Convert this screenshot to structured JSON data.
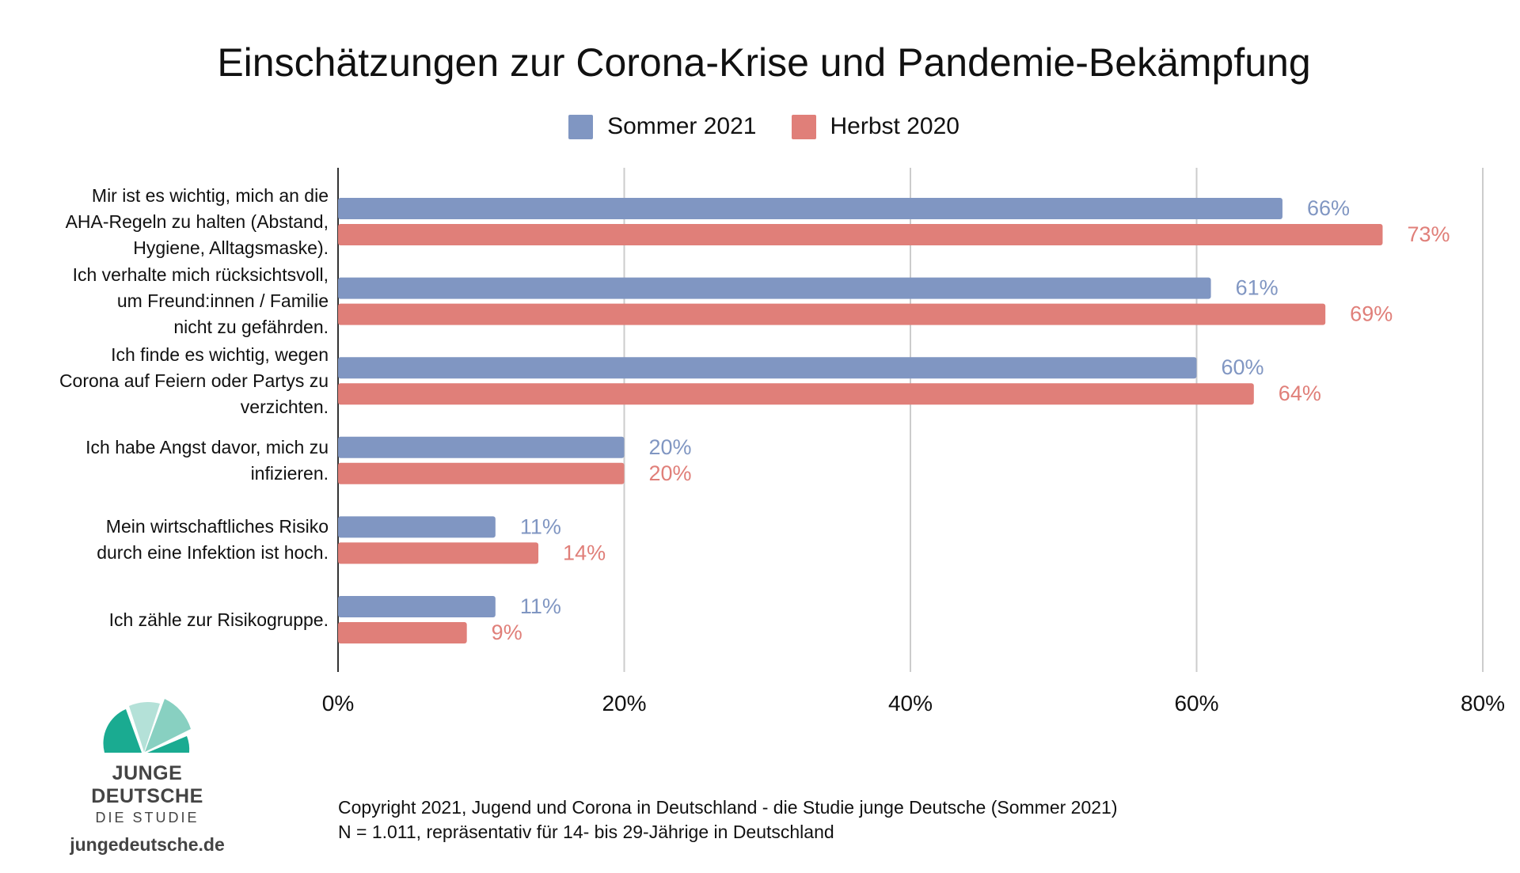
{
  "chart_data": {
    "type": "bar",
    "orientation": "horizontal",
    "title": "Einschätzungen zur Corona-Krise und Pandemie-Bekämpfung",
    "categories": [
      "Mir ist es wichtig, mich an die AHA-Regeln zu halten (Abstand, Hygiene, Alltagsmaske).",
      "Ich verhalte mich rücksichtsvoll, um Freund:innen / Familie nicht zu gefährden.",
      "Ich finde es wichtig, wegen Corona auf Feiern oder Partys zu verzichten.",
      "Ich habe Angst davor, mich zu infizieren.",
      "Mein wirtschaftliches Risiko durch eine Infektion ist hoch.",
      "Ich zähle zur Risikogruppe."
    ],
    "category_lines": [
      [
        "Mir ist es wichtig, mich an die",
        "AHA-Regeln zu halten (Abstand,",
        "Hygiene, Alltagsmaske)."
      ],
      [
        "Ich verhalte mich rücksichtsvoll,",
        "um Freund:innen / Familie",
        "nicht zu gefährden."
      ],
      [
        "Ich finde es wichtig, wegen",
        "Corona auf Feiern oder Partys zu",
        "verzichten."
      ],
      [
        "Ich habe Angst davor, mich zu",
        "infizieren."
      ],
      [
        "Mein wirtschaftliches Risiko",
        "durch eine Infektion ist hoch."
      ],
      [
        "Ich zähle zur Risikogruppe."
      ]
    ],
    "series": [
      {
        "name": "Sommer 2021",
        "color": "#8096c2",
        "values": [
          66,
          61,
          60,
          20,
          11,
          11
        ],
        "labels": [
          "66%",
          "61%",
          "60%",
          "20%",
          "11%",
          "11%"
        ]
      },
      {
        "name": "Herbst 2020",
        "color": "#e07f79",
        "values": [
          73,
          69,
          64,
          20,
          14,
          9
        ],
        "labels": [
          "73%",
          "69%",
          "64%",
          "20%",
          "14%",
          "9%"
        ]
      }
    ],
    "xlim": [
      0,
      80
    ],
    "xticks": [
      0,
      20,
      40,
      60,
      80
    ],
    "xtick_labels": [
      "0%",
      "20%",
      "40%",
      "60%",
      "80%"
    ],
    "grid": true,
    "legend_position": "top-center"
  },
  "logo": {
    "brand": "JUNGE DEUTSCHE",
    "subtitle": "DIE STUDIE",
    "url": "jungedeutsche.de"
  },
  "footer": {
    "line1": "Copyright 2021, Jugend und Corona in Deutschland - die Studie junge Deutsche (Sommer 2021)",
    "line2": "N = 1.011, repräsentativ für 14- bis 29-Jährige in Deutschland"
  }
}
